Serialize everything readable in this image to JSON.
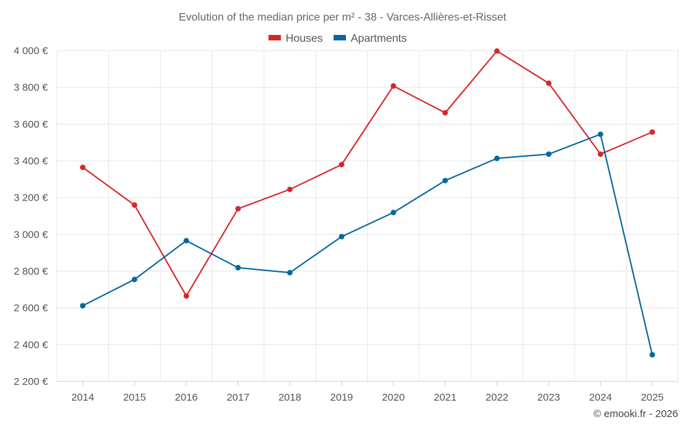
{
  "chart_data": {
    "type": "line",
    "title": "Evolution of the median price per m² - 38 - Varces-Allières-et-Risset",
    "categories": [
      "2014",
      "2015",
      "2016",
      "2017",
      "2018",
      "2019",
      "2020",
      "2021",
      "2022",
      "2023",
      "2024",
      "2025"
    ],
    "series": [
      {
        "name": "Houses",
        "color": "#d62728",
        "values": [
          3365,
          3160,
          2665,
          3140,
          3245,
          3380,
          3808,
          3662,
          3998,
          3823,
          3437,
          3557
        ]
      },
      {
        "name": "Apartments",
        "color": "#05679c",
        "values": [
          2612,
          2755,
          2966,
          2819,
          2792,
          2988,
          3119,
          3293,
          3414,
          3437,
          3545,
          2345
        ]
      }
    ],
    "ylim": [
      2200,
      4000
    ],
    "yticks": [
      {
        "value": 2200,
        "label": "2 200 €"
      },
      {
        "value": 2400,
        "label": "2 400 €"
      },
      {
        "value": 2600,
        "label": "2 600 €"
      },
      {
        "value": 2800,
        "label": "2 800 €"
      },
      {
        "value": 3000,
        "label": "3 000 €"
      },
      {
        "value": 3200,
        "label": "3 200 €"
      },
      {
        "value": 3400,
        "label": "3 400 €"
      },
      {
        "value": 3600,
        "label": "3 600 €"
      },
      {
        "value": 3800,
        "label": "3 800 €"
      },
      {
        "value": 4000,
        "label": "4 000 €"
      }
    ],
    "xlabel": "",
    "ylabel": "",
    "grid": true,
    "legend": "top-center"
  },
  "credit": "© emooki.fr - 2026"
}
